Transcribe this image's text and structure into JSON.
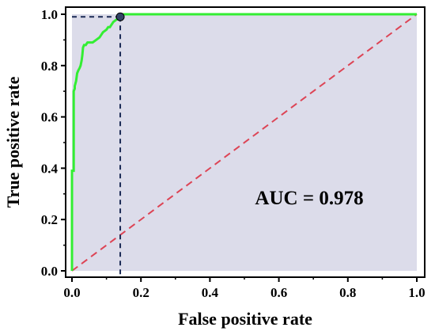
{
  "chart_data": {
    "type": "line",
    "xlabel": "False positive rate",
    "ylabel": "True positive rate",
    "xlim": [
      0,
      1
    ],
    "ylim": [
      0,
      1
    ],
    "xticks": [
      "0.0",
      "0.2",
      "0.4",
      "0.6",
      "0.8",
      "1.0"
    ],
    "yticks": [
      "0.0",
      "0.2",
      "0.4",
      "0.6",
      "0.8",
      "1.0"
    ],
    "annotation": "AUC = 0.978",
    "series": [
      {
        "color": "#33ee33",
        "x": [
          0.0,
          0.0,
          0.005,
          0.005,
          0.008,
          0.008,
          0.012,
          0.015,
          0.018,
          0.022,
          0.025,
          0.028,
          0.03,
          0.032,
          0.035,
          0.038,
          0.04,
          0.045,
          0.05,
          0.06,
          0.07,
          0.08,
          0.085,
          0.09,
          0.1,
          0.105,
          0.11,
          0.12,
          0.13,
          0.14,
          0.14,
          1.0
        ],
        "y": [
          0.0,
          0.39,
          0.39,
          0.7,
          0.71,
          0.72,
          0.74,
          0.77,
          0.78,
          0.79,
          0.8,
          0.82,
          0.84,
          0.87,
          0.88,
          0.88,
          0.88,
          0.89,
          0.89,
          0.89,
          0.9,
          0.91,
          0.92,
          0.93,
          0.94,
          0.95,
          0.95,
          0.97,
          0.98,
          0.99,
          1.0,
          1.0
        ]
      },
      {
        "color": "#dd4455",
        "style": "dashed",
        "x": [
          0,
          1
        ],
        "y": [
          0,
          1
        ]
      }
    ],
    "operating_point": {
      "x": 0.14,
      "y": 0.99
    },
    "fill_color": "#dcdcea"
  }
}
